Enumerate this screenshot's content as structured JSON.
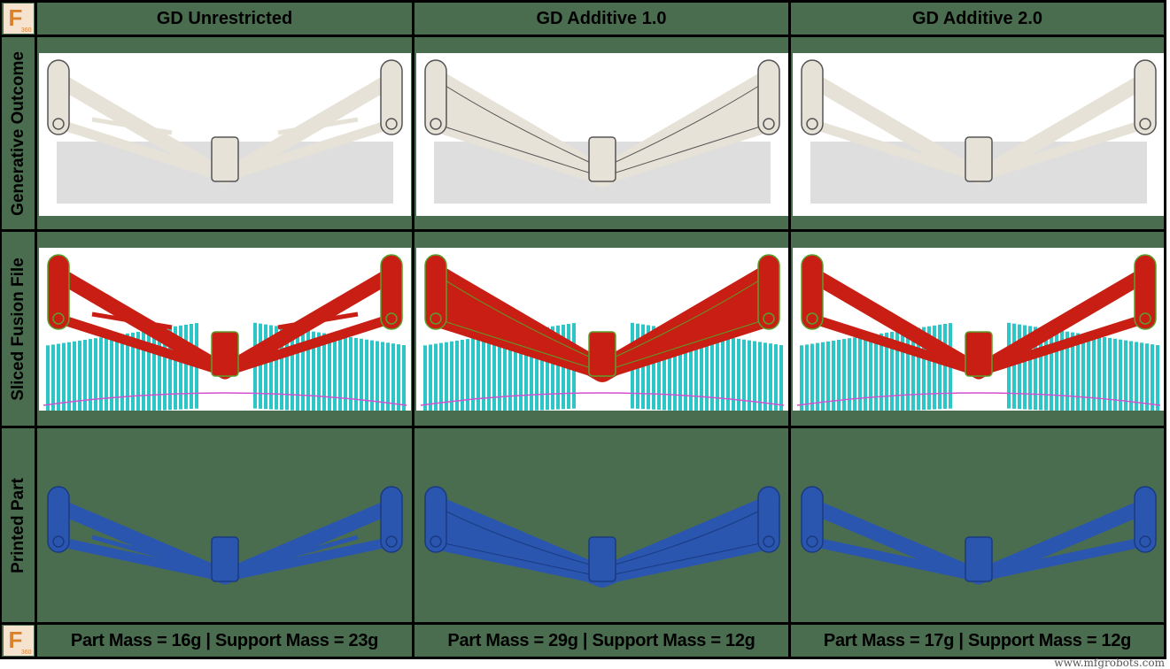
{
  "logo_text": "F",
  "logo_subtext": "360",
  "columns": [
    "GD Unrestricted",
    "GD Additive 1.0",
    "GD Additive 2.0"
  ],
  "rows": [
    "Generative Outcome",
    "Sliced Fusion File",
    "Printed Part"
  ],
  "footer": [
    "Part Mass = 16g | Support Mass = 23g",
    "Part Mass = 29g | Support Mass = 12g",
    "Part Mass = 17g | Support Mass = 12g"
  ],
  "colors": {
    "background": "#4b6d4f",
    "generative_part": "#e6e2d7",
    "shadow": "#c8c8c8",
    "sliced_part": "#c81e14",
    "sliced_outline": "#5aa02c",
    "supports": "#2cc6c6",
    "printed_part": "#2a56b0"
  },
  "watermark": "www.mfgrobots.com"
}
